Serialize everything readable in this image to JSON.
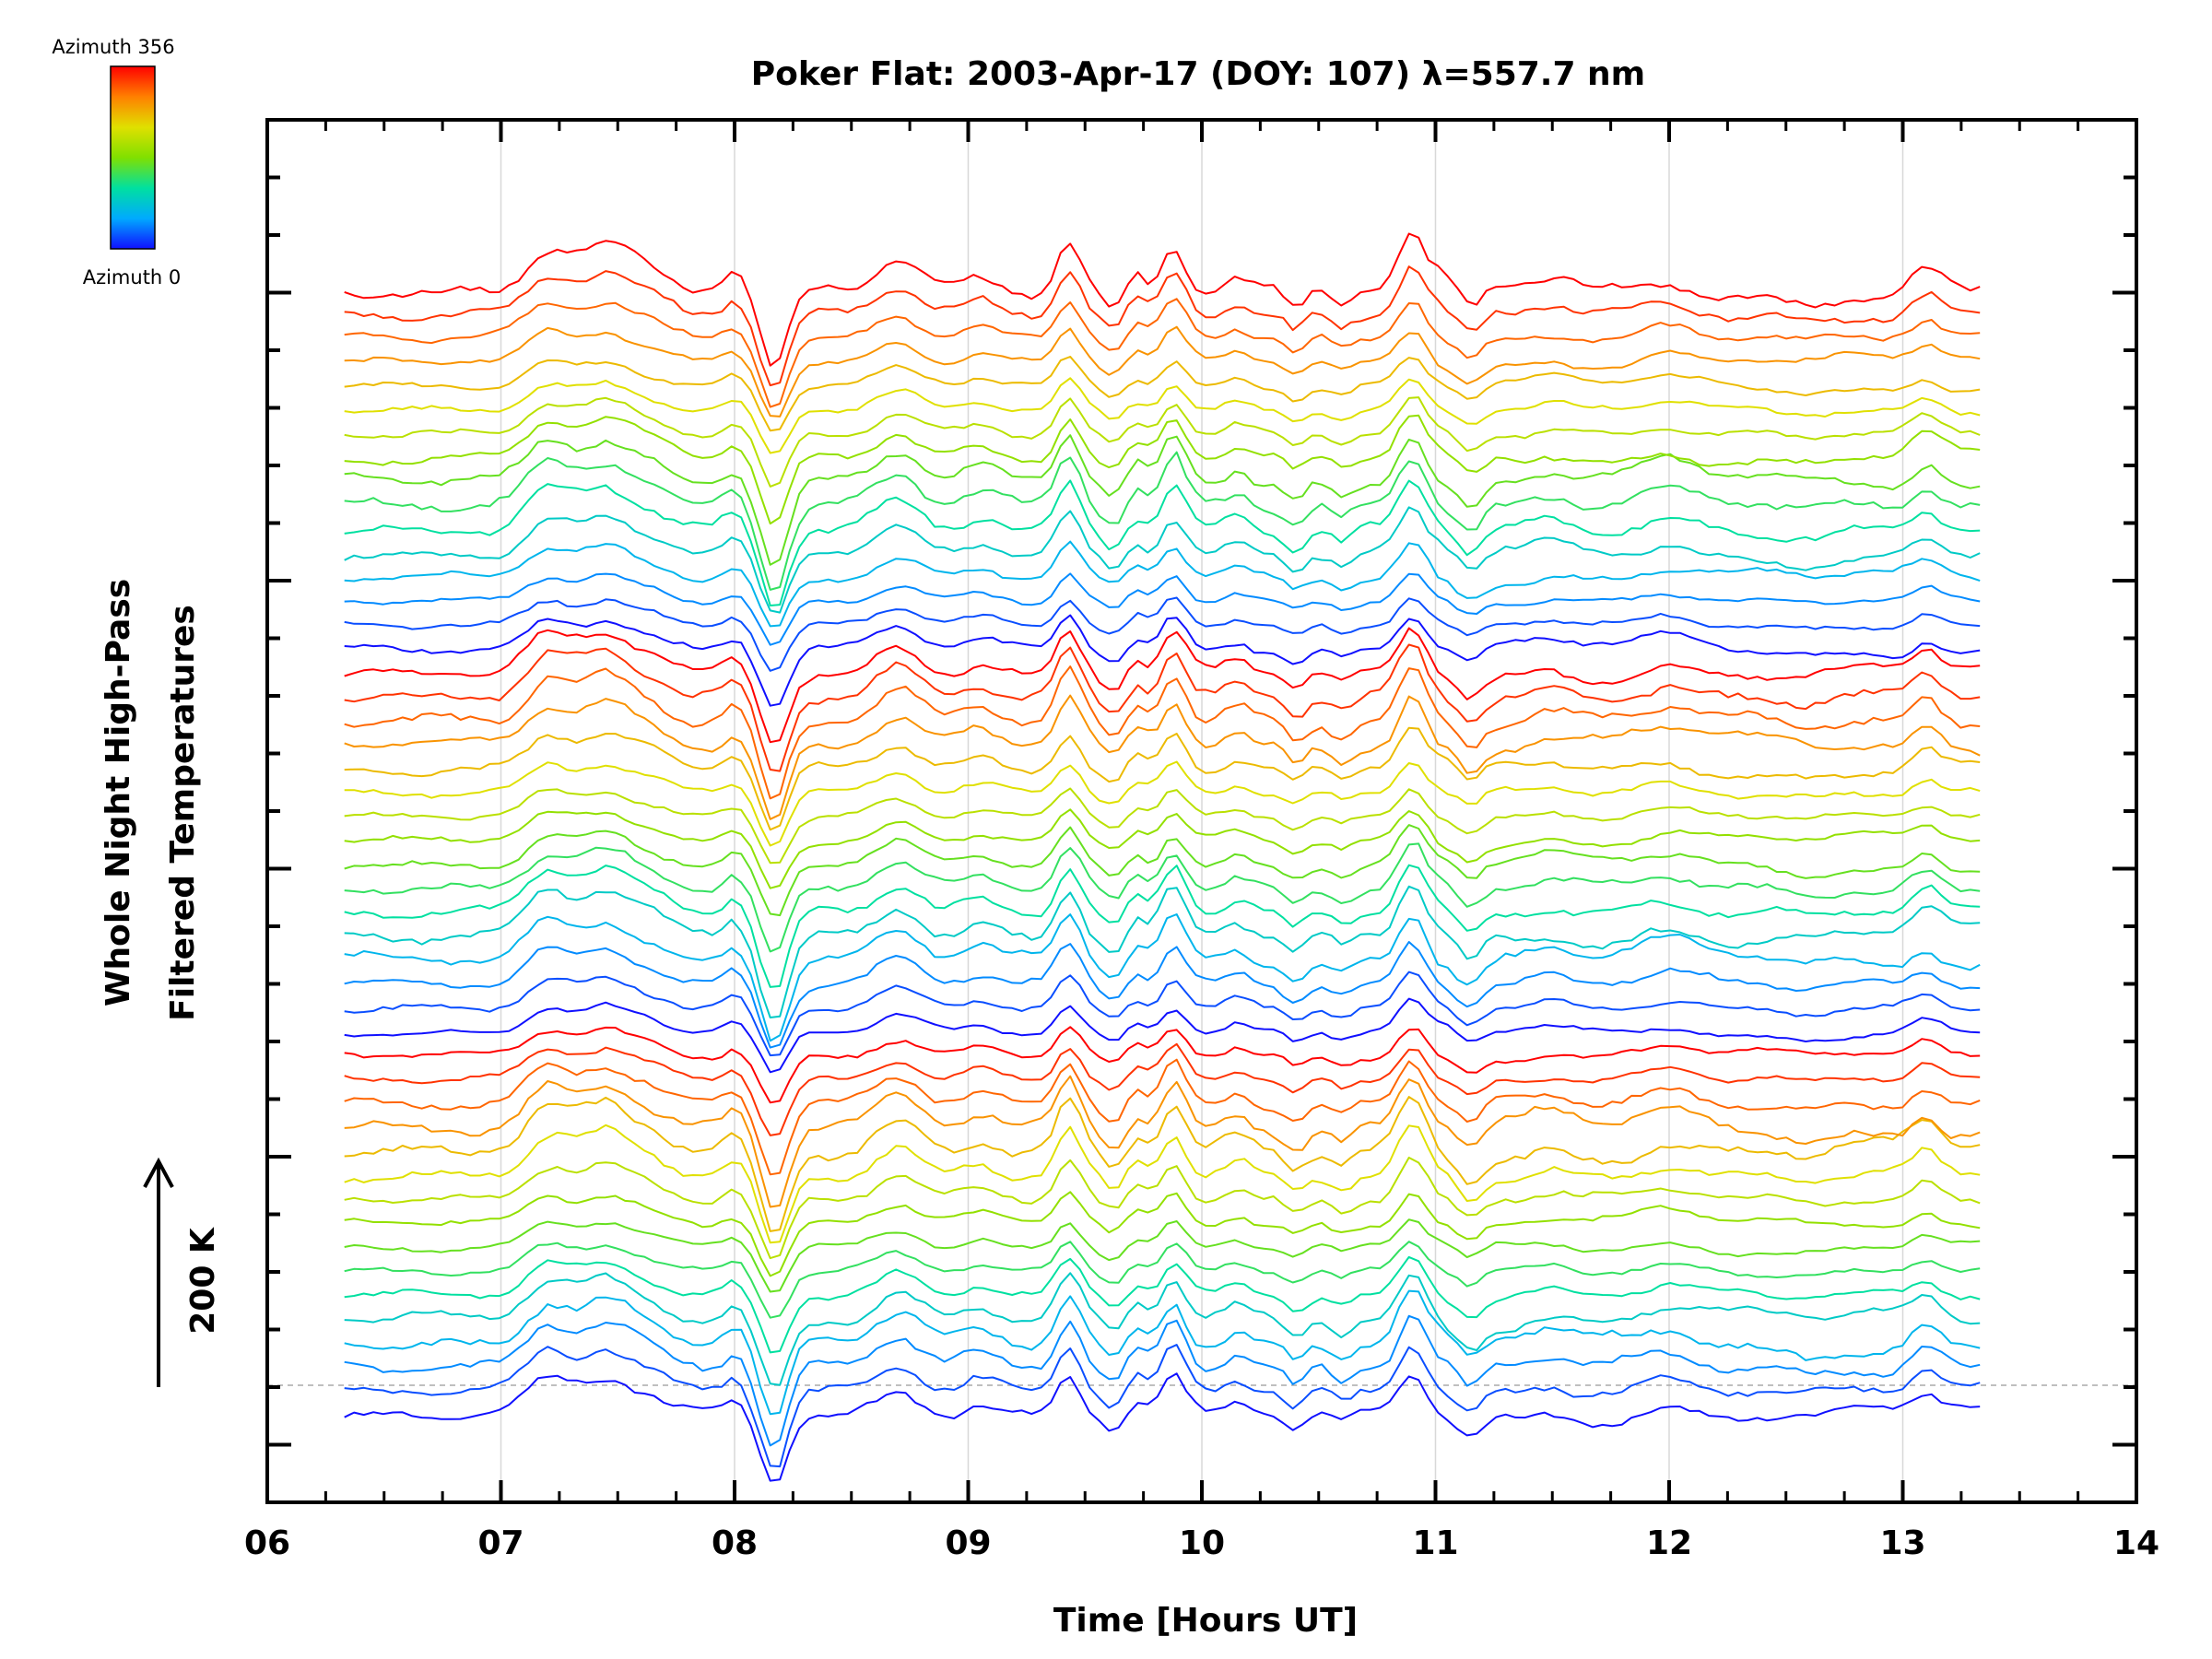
{
  "chart_data": {
    "type": "line",
    "title": "Poker Flat: 2003-Apr-17 (DOY: 107) λ=557.7 nm",
    "xlabel": "Time [Hours UT]",
    "ylabel_lines": [
      "Whole Night High-Pass",
      "Filtered Temperatures"
    ],
    "scale_label": "200 K",
    "xlim": [
      6,
      14
    ],
    "x_ticks": [
      "06",
      "07",
      "08",
      "09",
      "10",
      "11",
      "12",
      "13",
      "14"
    ],
    "x_minor_per_major": 4,
    "grid": "vertical at each hour",
    "baseline_dashed": true,
    "y_ticks_labeled": false,
    "data_time_range": [
      6.33,
      13.33
    ],
    "series_count": 48,
    "series_color_scale": "rainbow (blue → green → yellow → red), repeating by azimuth",
    "colorbar": {
      "top_label": "Azimuth 356",
      "bottom_label": "Azimuth 0",
      "colors": [
        "#1010ff",
        "#00aaff",
        "#00e0a0",
        "#80e000",
        "#e0e000",
        "#ff8000",
        "#ff0000"
      ]
    }
  }
}
